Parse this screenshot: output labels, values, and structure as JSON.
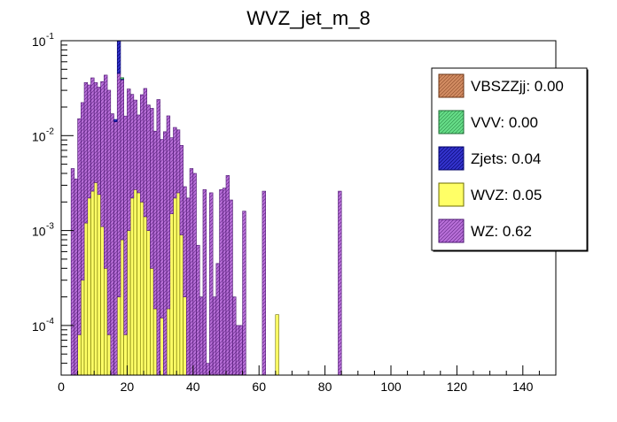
{
  "chart_data": {
    "type": "bar",
    "title": "WVZ_jet_m_8",
    "xlabel": "",
    "ylabel": "",
    "stacked": true,
    "log_y": true,
    "grid": false,
    "legend_placement": "top-right",
    "xlim": [
      0,
      150
    ],
    "ylim": [
      3e-05,
      0.1
    ],
    "bin_width": 1,
    "x_ticks": [
      0,
      20,
      40,
      60,
      80,
      100,
      120,
      140
    ],
    "x_tick_labels": [
      "0",
      "20",
      "40",
      "60",
      "80",
      "100",
      "120",
      "140"
    ],
    "y_ticks": [
      0.0001,
      0.001,
      0.01,
      0.1
    ],
    "y_tick_labels": [
      {
        "base": "10",
        "exp": "-4"
      },
      {
        "base": "10",
        "exp": "-3"
      },
      {
        "base": "10",
        "exp": "-2"
      },
      {
        "base": "10",
        "exp": "-1"
      }
    ],
    "series": [
      {
        "name": "WVZ",
        "legend": "WVZ: 0.05",
        "color": "#ffff66",
        "bins": [
          [
            5,
            8e-05
          ],
          [
            6,
            0.0003
          ],
          [
            7,
            0.0012
          ],
          [
            8,
            0.0022
          ],
          [
            9,
            0.0026
          ],
          [
            10,
            0.0032
          ],
          [
            11,
            0.0024
          ],
          [
            12,
            0.0011
          ],
          [
            13,
            0.0004
          ],
          [
            14,
            8e-05
          ],
          [
            17,
            0.0002
          ],
          [
            18,
            0.0008
          ],
          [
            19,
            8e-05
          ],
          [
            20,
            0.001
          ],
          [
            21,
            0.0022
          ],
          [
            22,
            0.0027
          ],
          [
            23,
            0.0025
          ],
          [
            24,
            0.002
          ],
          [
            25,
            0.0014
          ],
          [
            26,
            0.001
          ],
          [
            27,
            0.0004
          ],
          [
            28,
            0.00015
          ],
          [
            30,
            0.00012
          ],
          [
            32,
            0.00015
          ],
          [
            33,
            0.0015
          ],
          [
            34,
            0.0022
          ],
          [
            35,
            0.0025
          ],
          [
            36,
            0.0009
          ],
          [
            37,
            0.0002
          ],
          [
            65,
            0.00013
          ]
        ]
      },
      {
        "name": "WZ",
        "legend": "WZ: 0.62",
        "color": "#b86fd8",
        "bins": [
          [
            3,
            0.0045
          ],
          [
            4,
            0.0035
          ],
          [
            5,
            0.015
          ],
          [
            6,
            0.022
          ],
          [
            7,
            0.035
          ],
          [
            8,
            0.032
          ],
          [
            9,
            0.038
          ],
          [
            10,
            0.033
          ],
          [
            11,
            0.03
          ],
          [
            12,
            0.036
          ],
          [
            13,
            0.043
          ],
          [
            14,
            0.03
          ],
          [
            15,
            0.017
          ],
          [
            16,
            0.014
          ],
          [
            17,
            0.045
          ],
          [
            18,
            0.038
          ],
          [
            19,
            0.016
          ],
          [
            20,
            0.03
          ],
          [
            21,
            0.025
          ],
          [
            22,
            0.021
          ],
          [
            23,
            0.014
          ],
          [
            24,
            0.025
          ],
          [
            25,
            0.03
          ],
          [
            26,
            0.02
          ],
          [
            27,
            0.019
          ],
          [
            28,
            0.011
          ],
          [
            29,
            0.024
          ],
          [
            30,
            0.009
          ],
          [
            31,
            0.011
          ],
          [
            32,
            0.016
          ],
          [
            33,
            0.008
          ],
          [
            34,
            0.01
          ],
          [
            35,
            0.009
          ],
          [
            36,
            0.007
          ],
          [
            37,
            0.0027
          ],
          [
            38,
            0.0022
          ],
          [
            39,
            0.0045
          ],
          [
            40,
            0.004
          ],
          [
            41,
            0.0007
          ],
          [
            42,
            0.0002
          ],
          [
            43,
            0.0027
          ],
          [
            44,
            4e-05
          ],
          [
            45,
            0.0025
          ],
          [
            46,
            0.0002
          ],
          [
            47,
            0.00045
          ],
          [
            48,
            0.0027
          ],
          [
            49,
            0.0028
          ],
          [
            50,
            0.0038
          ],
          [
            51,
            0.0021
          ],
          [
            52,
            0.0002
          ],
          [
            53,
            0.0001
          ],
          [
            54,
            0.0001
          ],
          [
            55,
            0.0016
          ],
          [
            61,
            0.0026
          ],
          [
            84,
            0.0026
          ]
        ]
      },
      {
        "name": "Zjets",
        "legend": "Zjets: 0.04",
        "color": "#3333cc",
        "bins": [
          [
            16,
            0.0008
          ],
          [
            17,
            0.06
          ],
          [
            18,
            0.0008
          ]
        ]
      },
      {
        "name": "VVV",
        "legend": "VVV: 0.00",
        "color": "#66dd88",
        "bins": [
          [
            18,
            0.0012
          ]
        ]
      },
      {
        "name": "VBSZZjj",
        "legend": "VBSZZjj: 0.00",
        "color": "#d28c62",
        "bins": []
      }
    ]
  }
}
